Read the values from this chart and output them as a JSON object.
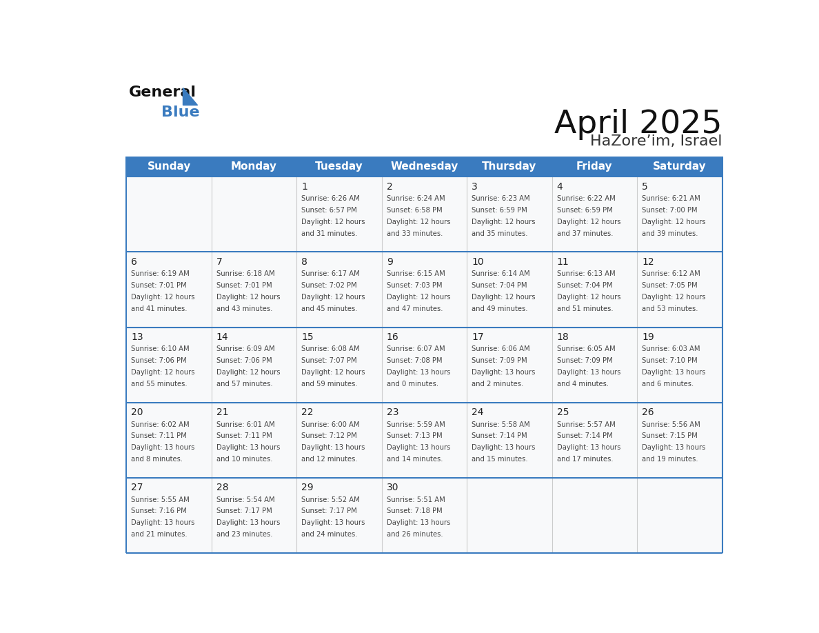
{
  "title": "April 2025",
  "subtitle": "HaZore’im, Israel",
  "header_bg": "#3a7bbf",
  "header_text": "#ffffff",
  "cell_bg": "#f8f9fa",
  "cell_border": "#3a7bbf",
  "text_color": "#444444",
  "day_num_color": "#222222",
  "day_names": [
    "Sunday",
    "Monday",
    "Tuesday",
    "Wednesday",
    "Thursday",
    "Friday",
    "Saturday"
  ],
  "weeks": [
    [
      {
        "day": null,
        "lines": []
      },
      {
        "day": null,
        "lines": []
      },
      {
        "day": "1",
        "lines": [
          "Sunrise: 6:26 AM",
          "Sunset: 6:57 PM",
          "Daylight: 12 hours",
          "and 31 minutes."
        ]
      },
      {
        "day": "2",
        "lines": [
          "Sunrise: 6:24 AM",
          "Sunset: 6:58 PM",
          "Daylight: 12 hours",
          "and 33 minutes."
        ]
      },
      {
        "day": "3",
        "lines": [
          "Sunrise: 6:23 AM",
          "Sunset: 6:59 PM",
          "Daylight: 12 hours",
          "and 35 minutes."
        ]
      },
      {
        "day": "4",
        "lines": [
          "Sunrise: 6:22 AM",
          "Sunset: 6:59 PM",
          "Daylight: 12 hours",
          "and 37 minutes."
        ]
      },
      {
        "day": "5",
        "lines": [
          "Sunrise: 6:21 AM",
          "Sunset: 7:00 PM",
          "Daylight: 12 hours",
          "and 39 minutes."
        ]
      }
    ],
    [
      {
        "day": "6",
        "lines": [
          "Sunrise: 6:19 AM",
          "Sunset: 7:01 PM",
          "Daylight: 12 hours",
          "and 41 minutes."
        ]
      },
      {
        "day": "7",
        "lines": [
          "Sunrise: 6:18 AM",
          "Sunset: 7:01 PM",
          "Daylight: 12 hours",
          "and 43 minutes."
        ]
      },
      {
        "day": "8",
        "lines": [
          "Sunrise: 6:17 AM",
          "Sunset: 7:02 PM",
          "Daylight: 12 hours",
          "and 45 minutes."
        ]
      },
      {
        "day": "9",
        "lines": [
          "Sunrise: 6:15 AM",
          "Sunset: 7:03 PM",
          "Daylight: 12 hours",
          "and 47 minutes."
        ]
      },
      {
        "day": "10",
        "lines": [
          "Sunrise: 6:14 AM",
          "Sunset: 7:04 PM",
          "Daylight: 12 hours",
          "and 49 minutes."
        ]
      },
      {
        "day": "11",
        "lines": [
          "Sunrise: 6:13 AM",
          "Sunset: 7:04 PM",
          "Daylight: 12 hours",
          "and 51 minutes."
        ]
      },
      {
        "day": "12",
        "lines": [
          "Sunrise: 6:12 AM",
          "Sunset: 7:05 PM",
          "Daylight: 12 hours",
          "and 53 minutes."
        ]
      }
    ],
    [
      {
        "day": "13",
        "lines": [
          "Sunrise: 6:10 AM",
          "Sunset: 7:06 PM",
          "Daylight: 12 hours",
          "and 55 minutes."
        ]
      },
      {
        "day": "14",
        "lines": [
          "Sunrise: 6:09 AM",
          "Sunset: 7:06 PM",
          "Daylight: 12 hours",
          "and 57 minutes."
        ]
      },
      {
        "day": "15",
        "lines": [
          "Sunrise: 6:08 AM",
          "Sunset: 7:07 PM",
          "Daylight: 12 hours",
          "and 59 minutes."
        ]
      },
      {
        "day": "16",
        "lines": [
          "Sunrise: 6:07 AM",
          "Sunset: 7:08 PM",
          "Daylight: 13 hours",
          "and 0 minutes."
        ]
      },
      {
        "day": "17",
        "lines": [
          "Sunrise: 6:06 AM",
          "Sunset: 7:09 PM",
          "Daylight: 13 hours",
          "and 2 minutes."
        ]
      },
      {
        "day": "18",
        "lines": [
          "Sunrise: 6:05 AM",
          "Sunset: 7:09 PM",
          "Daylight: 13 hours",
          "and 4 minutes."
        ]
      },
      {
        "day": "19",
        "lines": [
          "Sunrise: 6:03 AM",
          "Sunset: 7:10 PM",
          "Daylight: 13 hours",
          "and 6 minutes."
        ]
      }
    ],
    [
      {
        "day": "20",
        "lines": [
          "Sunrise: 6:02 AM",
          "Sunset: 7:11 PM",
          "Daylight: 13 hours",
          "and 8 minutes."
        ]
      },
      {
        "day": "21",
        "lines": [
          "Sunrise: 6:01 AM",
          "Sunset: 7:11 PM",
          "Daylight: 13 hours",
          "and 10 minutes."
        ]
      },
      {
        "day": "22",
        "lines": [
          "Sunrise: 6:00 AM",
          "Sunset: 7:12 PM",
          "Daylight: 13 hours",
          "and 12 minutes."
        ]
      },
      {
        "day": "23",
        "lines": [
          "Sunrise: 5:59 AM",
          "Sunset: 7:13 PM",
          "Daylight: 13 hours",
          "and 14 minutes."
        ]
      },
      {
        "day": "24",
        "lines": [
          "Sunrise: 5:58 AM",
          "Sunset: 7:14 PM",
          "Daylight: 13 hours",
          "and 15 minutes."
        ]
      },
      {
        "day": "25",
        "lines": [
          "Sunrise: 5:57 AM",
          "Sunset: 7:14 PM",
          "Daylight: 13 hours",
          "and 17 minutes."
        ]
      },
      {
        "day": "26",
        "lines": [
          "Sunrise: 5:56 AM",
          "Sunset: 7:15 PM",
          "Daylight: 13 hours",
          "and 19 minutes."
        ]
      }
    ],
    [
      {
        "day": "27",
        "lines": [
          "Sunrise: 5:55 AM",
          "Sunset: 7:16 PM",
          "Daylight: 13 hours",
          "and 21 minutes."
        ]
      },
      {
        "day": "28",
        "lines": [
          "Sunrise: 5:54 AM",
          "Sunset: 7:17 PM",
          "Daylight: 13 hours",
          "and 23 minutes."
        ]
      },
      {
        "day": "29",
        "lines": [
          "Sunrise: 5:52 AM",
          "Sunset: 7:17 PM",
          "Daylight: 13 hours",
          "and 24 minutes."
        ]
      },
      {
        "day": "30",
        "lines": [
          "Sunrise: 5:51 AM",
          "Sunset: 7:18 PM",
          "Daylight: 13 hours",
          "and 26 minutes."
        ]
      },
      {
        "day": null,
        "lines": []
      },
      {
        "day": null,
        "lines": []
      },
      {
        "day": null,
        "lines": []
      }
    ]
  ]
}
